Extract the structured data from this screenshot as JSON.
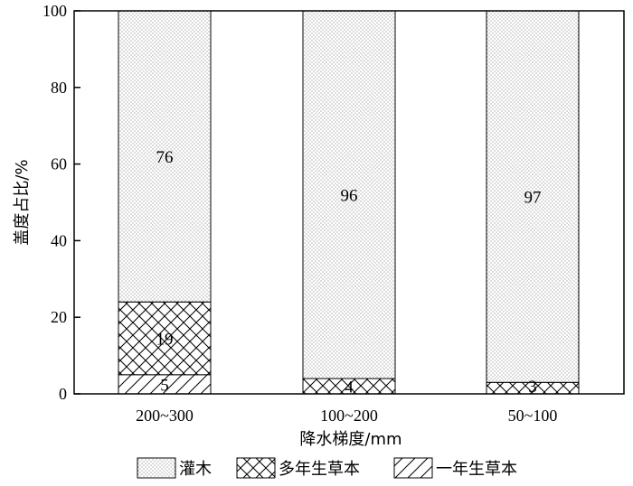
{
  "chart_data": {
    "type": "bar",
    "stacked": true,
    "categories": [
      "200~300",
      "100~200",
      "50~100"
    ],
    "series": [
      {
        "name": "一年生草本",
        "values": [
          5,
          0,
          0
        ],
        "pattern": "diagonal"
      },
      {
        "name": "多年生草本",
        "values": [
          19,
          4,
          3
        ],
        "pattern": "crosshatch"
      },
      {
        "name": "灌木",
        "values": [
          76,
          96,
          97
        ],
        "pattern": "dots"
      }
    ],
    "data_labels": [
      {
        "category": 0,
        "series": 0,
        "text": "5"
      },
      {
        "category": 0,
        "series": 1,
        "text": "19"
      },
      {
        "category": 0,
        "series": 2,
        "text": "76"
      },
      {
        "category": 1,
        "series": 1,
        "text": "4"
      },
      {
        "category": 1,
        "series": 2,
        "text": "96"
      },
      {
        "category": 2,
        "series": 1,
        "text": "3"
      },
      {
        "category": 2,
        "series": 2,
        "text": "97"
      }
    ],
    "xlabel": "降水梯度/mm",
    "ylabel": "盖度占比/%",
    "ylim": [
      0,
      100
    ],
    "yticks": [
      0,
      20,
      40,
      60,
      80,
      100
    ],
    "grid": false,
    "legend_position": "bottom",
    "legend_order": [
      "灌木",
      "多年生草本",
      "一年生草本"
    ]
  }
}
